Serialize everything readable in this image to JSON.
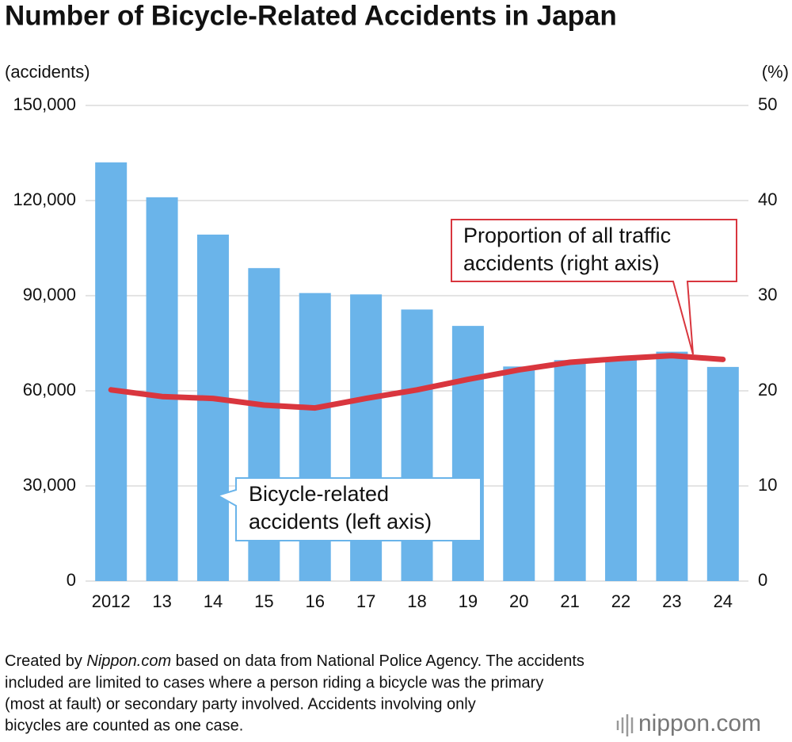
{
  "chart_data": {
    "type": "bar-line",
    "title": "Number of Bicycle-Related Accidents in Japan",
    "y_unit": "(accidents)",
    "y2_unit": "(%)",
    "categories": [
      "2012",
      "13",
      "14",
      "15",
      "16",
      "17",
      "18",
      "19",
      "20",
      "21",
      "22",
      "23",
      "24"
    ],
    "series": [
      {
        "type": "bar",
        "color": "#6ab4ea",
        "values": [
          132048,
          121040,
          109269,
          98700,
          90836,
          90407,
          85641,
          80473,
          67673,
          69694,
          69985,
          72339,
          67531
        ]
      },
      {
        "type": "line",
        "axis": "y2",
        "color": "#d9363e",
        "values": [
          20.1,
          19.4,
          19.2,
          18.5,
          18.2,
          19.2,
          20.1,
          21.2,
          22.2,
          23.0,
          23.4,
          23.7,
          23.3
        ]
      }
    ],
    "ylim": [
      0,
      150000
    ],
    "yticks": [
      0,
      {
        "value": 30000,
        "label": "30,000"
      },
      {
        "value": 60000,
        "label": "60,000"
      },
      {
        "value": 90000,
        "label": "90,000"
      },
      {
        "value": 120000,
        "label": "120,000"
      },
      {
        "value": 150000,
        "label": "150,000"
      }
    ],
    "y2lim": [
      0,
      50
    ],
    "y2ticks": [
      0,
      10,
      20,
      30,
      40,
      50
    ],
    "grid": true,
    "annotations": [
      {
        "lines": [
          "Bicycle-related",
          "accidents (left axis)"
        ]
      },
      {
        "lines": [
          "Proportion of all traffic",
          "accidents (right axis)"
        ]
      }
    ],
    "note": [
      [
        "Created by ",
        "Nippon.com",
        " based on data from National Police Agency. The accidents"
      ],
      [
        "included are limited to cases where a person riding a bicycle was the primary"
      ],
      [
        "(most at fault) or secondary party involved. Accidents involving only"
      ],
      [
        "bicycles are counted as one case."
      ]
    ],
    "source_logo": "nippon.com"
  }
}
